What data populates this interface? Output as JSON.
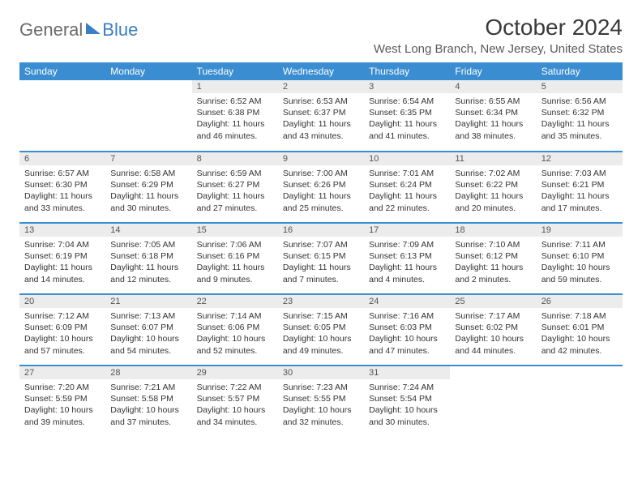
{
  "logo": {
    "general": "General",
    "blue": "Blue"
  },
  "title": "October 2024",
  "location": "West Long Branch, New Jersey, United States",
  "weekdays": [
    "Sunday",
    "Monday",
    "Tuesday",
    "Wednesday",
    "Thursday",
    "Friday",
    "Saturday"
  ],
  "colors": {
    "header_bg": "#3a8dd0",
    "header_text": "#ffffff",
    "daynum_bg": "#ececec",
    "border": "#3a8dd0",
    "logo_gray": "#6b6b6b",
    "logo_blue": "#3a7fc4"
  },
  "weeks": [
    [
      {
        "num": "",
        "sunrise": "",
        "sunset": "",
        "daylight": ""
      },
      {
        "num": "",
        "sunrise": "",
        "sunset": "",
        "daylight": ""
      },
      {
        "num": "1",
        "sunrise": "Sunrise: 6:52 AM",
        "sunset": "Sunset: 6:38 PM",
        "daylight": "Daylight: 11 hours and 46 minutes."
      },
      {
        "num": "2",
        "sunrise": "Sunrise: 6:53 AM",
        "sunset": "Sunset: 6:37 PM",
        "daylight": "Daylight: 11 hours and 43 minutes."
      },
      {
        "num": "3",
        "sunrise": "Sunrise: 6:54 AM",
        "sunset": "Sunset: 6:35 PM",
        "daylight": "Daylight: 11 hours and 41 minutes."
      },
      {
        "num": "4",
        "sunrise": "Sunrise: 6:55 AM",
        "sunset": "Sunset: 6:34 PM",
        "daylight": "Daylight: 11 hours and 38 minutes."
      },
      {
        "num": "5",
        "sunrise": "Sunrise: 6:56 AM",
        "sunset": "Sunset: 6:32 PM",
        "daylight": "Daylight: 11 hours and 35 minutes."
      }
    ],
    [
      {
        "num": "6",
        "sunrise": "Sunrise: 6:57 AM",
        "sunset": "Sunset: 6:30 PM",
        "daylight": "Daylight: 11 hours and 33 minutes."
      },
      {
        "num": "7",
        "sunrise": "Sunrise: 6:58 AM",
        "sunset": "Sunset: 6:29 PM",
        "daylight": "Daylight: 11 hours and 30 minutes."
      },
      {
        "num": "8",
        "sunrise": "Sunrise: 6:59 AM",
        "sunset": "Sunset: 6:27 PM",
        "daylight": "Daylight: 11 hours and 27 minutes."
      },
      {
        "num": "9",
        "sunrise": "Sunrise: 7:00 AM",
        "sunset": "Sunset: 6:26 PM",
        "daylight": "Daylight: 11 hours and 25 minutes."
      },
      {
        "num": "10",
        "sunrise": "Sunrise: 7:01 AM",
        "sunset": "Sunset: 6:24 PM",
        "daylight": "Daylight: 11 hours and 22 minutes."
      },
      {
        "num": "11",
        "sunrise": "Sunrise: 7:02 AM",
        "sunset": "Sunset: 6:22 PM",
        "daylight": "Daylight: 11 hours and 20 minutes."
      },
      {
        "num": "12",
        "sunrise": "Sunrise: 7:03 AM",
        "sunset": "Sunset: 6:21 PM",
        "daylight": "Daylight: 11 hours and 17 minutes."
      }
    ],
    [
      {
        "num": "13",
        "sunrise": "Sunrise: 7:04 AM",
        "sunset": "Sunset: 6:19 PM",
        "daylight": "Daylight: 11 hours and 14 minutes."
      },
      {
        "num": "14",
        "sunrise": "Sunrise: 7:05 AM",
        "sunset": "Sunset: 6:18 PM",
        "daylight": "Daylight: 11 hours and 12 minutes."
      },
      {
        "num": "15",
        "sunrise": "Sunrise: 7:06 AM",
        "sunset": "Sunset: 6:16 PM",
        "daylight": "Daylight: 11 hours and 9 minutes."
      },
      {
        "num": "16",
        "sunrise": "Sunrise: 7:07 AM",
        "sunset": "Sunset: 6:15 PM",
        "daylight": "Daylight: 11 hours and 7 minutes."
      },
      {
        "num": "17",
        "sunrise": "Sunrise: 7:09 AM",
        "sunset": "Sunset: 6:13 PM",
        "daylight": "Daylight: 11 hours and 4 minutes."
      },
      {
        "num": "18",
        "sunrise": "Sunrise: 7:10 AM",
        "sunset": "Sunset: 6:12 PM",
        "daylight": "Daylight: 11 hours and 2 minutes."
      },
      {
        "num": "19",
        "sunrise": "Sunrise: 7:11 AM",
        "sunset": "Sunset: 6:10 PM",
        "daylight": "Daylight: 10 hours and 59 minutes."
      }
    ],
    [
      {
        "num": "20",
        "sunrise": "Sunrise: 7:12 AM",
        "sunset": "Sunset: 6:09 PM",
        "daylight": "Daylight: 10 hours and 57 minutes."
      },
      {
        "num": "21",
        "sunrise": "Sunrise: 7:13 AM",
        "sunset": "Sunset: 6:07 PM",
        "daylight": "Daylight: 10 hours and 54 minutes."
      },
      {
        "num": "22",
        "sunrise": "Sunrise: 7:14 AM",
        "sunset": "Sunset: 6:06 PM",
        "daylight": "Daylight: 10 hours and 52 minutes."
      },
      {
        "num": "23",
        "sunrise": "Sunrise: 7:15 AM",
        "sunset": "Sunset: 6:05 PM",
        "daylight": "Daylight: 10 hours and 49 minutes."
      },
      {
        "num": "24",
        "sunrise": "Sunrise: 7:16 AM",
        "sunset": "Sunset: 6:03 PM",
        "daylight": "Daylight: 10 hours and 47 minutes."
      },
      {
        "num": "25",
        "sunrise": "Sunrise: 7:17 AM",
        "sunset": "Sunset: 6:02 PM",
        "daylight": "Daylight: 10 hours and 44 minutes."
      },
      {
        "num": "26",
        "sunrise": "Sunrise: 7:18 AM",
        "sunset": "Sunset: 6:01 PM",
        "daylight": "Daylight: 10 hours and 42 minutes."
      }
    ],
    [
      {
        "num": "27",
        "sunrise": "Sunrise: 7:20 AM",
        "sunset": "Sunset: 5:59 PM",
        "daylight": "Daylight: 10 hours and 39 minutes."
      },
      {
        "num": "28",
        "sunrise": "Sunrise: 7:21 AM",
        "sunset": "Sunset: 5:58 PM",
        "daylight": "Daylight: 10 hours and 37 minutes."
      },
      {
        "num": "29",
        "sunrise": "Sunrise: 7:22 AM",
        "sunset": "Sunset: 5:57 PM",
        "daylight": "Daylight: 10 hours and 34 minutes."
      },
      {
        "num": "30",
        "sunrise": "Sunrise: 7:23 AM",
        "sunset": "Sunset: 5:55 PM",
        "daylight": "Daylight: 10 hours and 32 minutes."
      },
      {
        "num": "31",
        "sunrise": "Sunrise: 7:24 AM",
        "sunset": "Sunset: 5:54 PM",
        "daylight": "Daylight: 10 hours and 30 minutes."
      },
      {
        "num": "",
        "sunrise": "",
        "sunset": "",
        "daylight": ""
      },
      {
        "num": "",
        "sunrise": "",
        "sunset": "",
        "daylight": ""
      }
    ]
  ]
}
